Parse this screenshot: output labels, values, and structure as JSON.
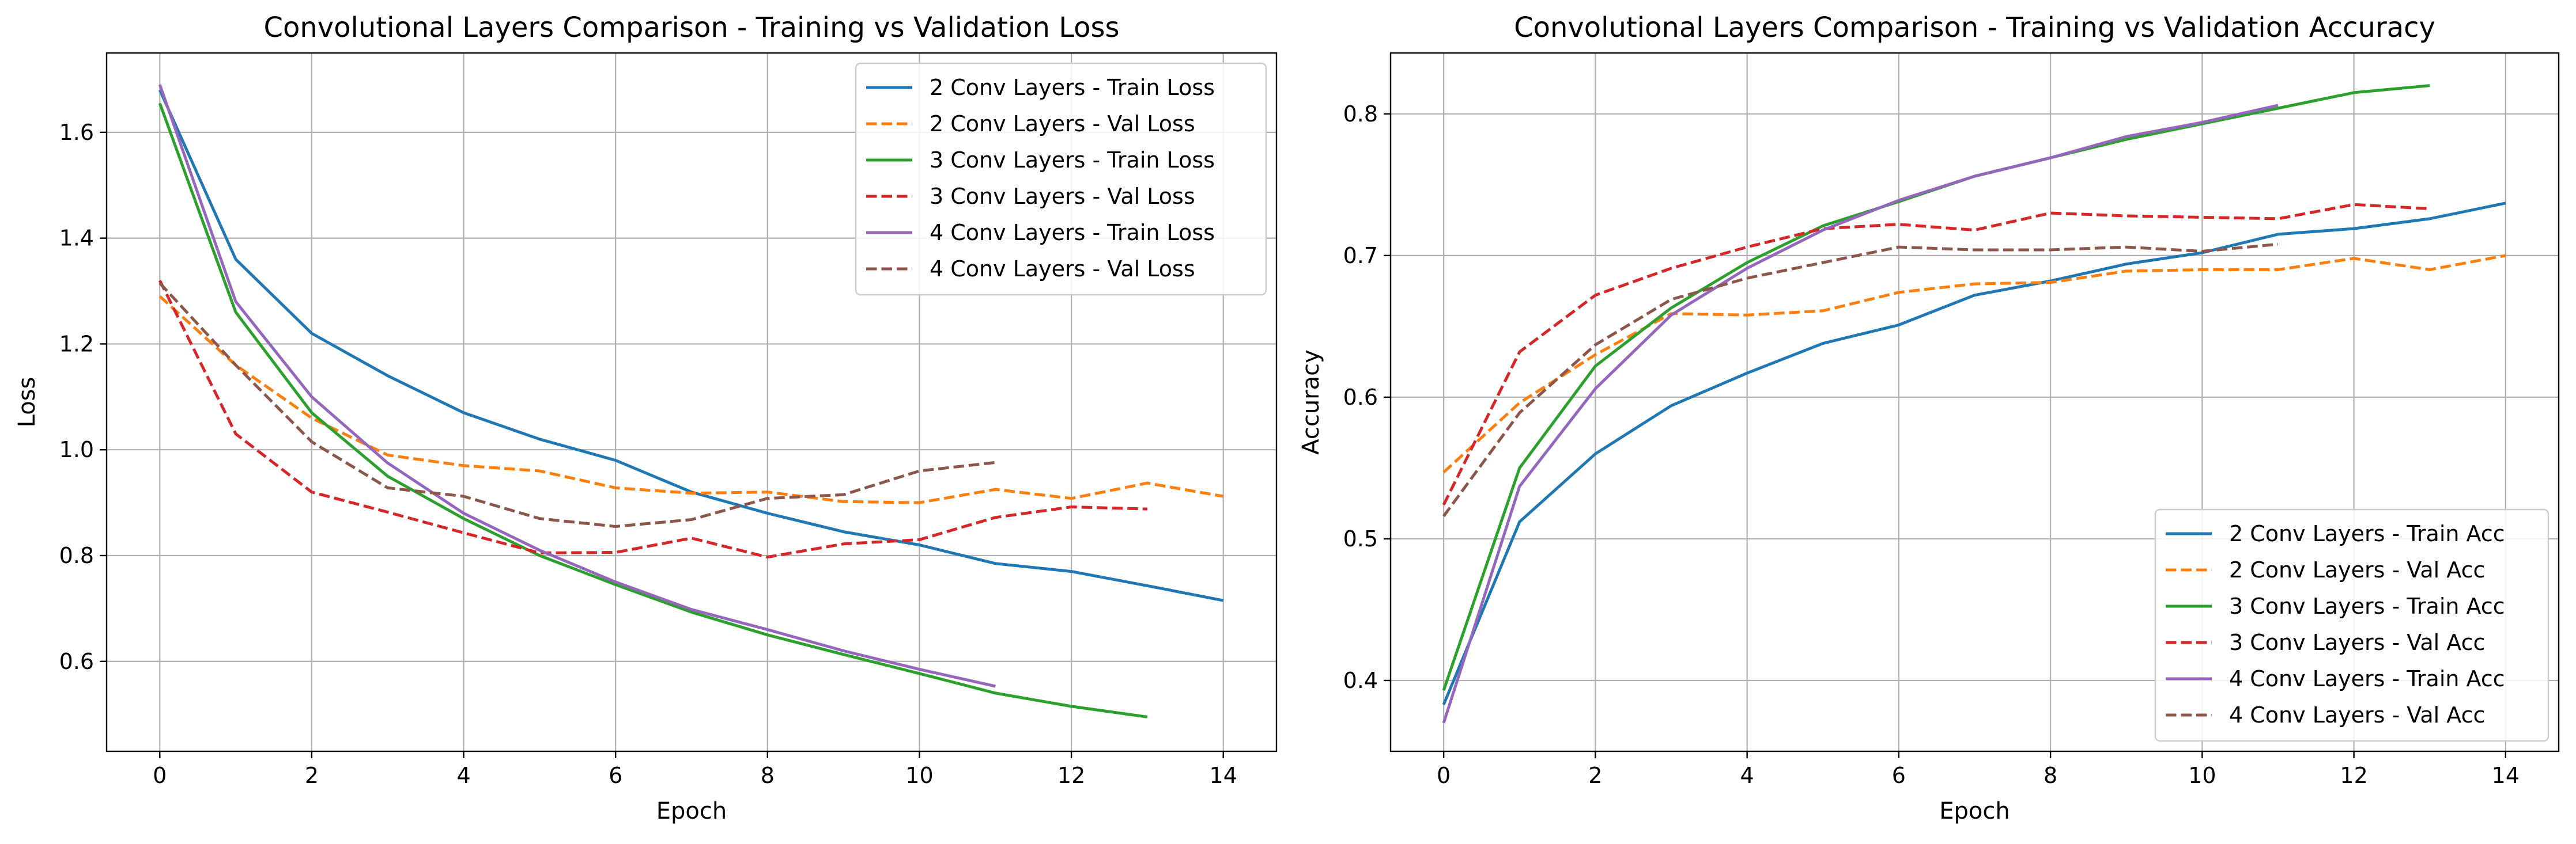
{
  "chart_data": [
    {
      "type": "line",
      "title": "Convolutional Layers Comparison - Training vs Validation Loss",
      "xlabel": "Epoch",
      "ylabel": "Loss",
      "xlim": [
        -0.7,
        14.7
      ],
      "ylim": [
        0.43,
        1.75
      ],
      "xticks": [
        0,
        2,
        4,
        6,
        8,
        10,
        12,
        14
      ],
      "yticks": [
        0.6,
        0.8,
        1.0,
        1.2,
        1.4,
        1.6
      ],
      "ytick_decimals": 1,
      "grid": true,
      "legend_position": "upper right",
      "series": [
        {
          "name": "2 Conv Layers - Train Loss",
          "color": "#1f77b4",
          "dashed": false,
          "x": [
            0,
            1,
            2,
            3,
            4,
            5,
            6,
            7,
            8,
            9,
            10,
            11,
            12,
            13,
            14
          ],
          "y": [
            1.68,
            1.36,
            1.22,
            1.14,
            1.07,
            1.02,
            0.98,
            0.92,
            0.88,
            0.845,
            0.82,
            0.785,
            0.77,
            0.743,
            0.715
          ]
        },
        {
          "name": "2 Conv Layers - Val Loss",
          "color": "#ff7f0e",
          "dashed": true,
          "x": [
            0,
            1,
            2,
            3,
            4,
            5,
            6,
            7,
            8,
            9,
            10,
            11,
            12,
            13,
            14
          ],
          "y": [
            1.29,
            1.16,
            1.06,
            0.99,
            0.97,
            0.96,
            0.928,
            0.918,
            0.92,
            0.902,
            0.9,
            0.925,
            0.908,
            0.937,
            0.912
          ]
        },
        {
          "name": "3 Conv Layers - Train Loss",
          "color": "#2ca02c",
          "dashed": false,
          "x": [
            0,
            1,
            2,
            3,
            4,
            5,
            6,
            7,
            8,
            9,
            10,
            11,
            12,
            13
          ],
          "y": [
            1.655,
            1.26,
            1.07,
            0.95,
            0.87,
            0.8,
            0.745,
            0.693,
            0.65,
            0.613,
            0.577,
            0.54,
            0.515,
            0.495
          ]
        },
        {
          "name": "3 Conv Layers - Val Loss",
          "color": "#d62728",
          "dashed": true,
          "x": [
            0,
            1,
            2,
            3,
            4,
            5,
            6,
            7,
            8,
            9,
            10,
            11,
            12,
            13
          ],
          "y": [
            1.32,
            1.03,
            0.92,
            0.882,
            0.843,
            0.805,
            0.806,
            0.833,
            0.797,
            0.822,
            0.83,
            0.872,
            0.892,
            0.888
          ]
        },
        {
          "name": "4 Conv Layers - Train Loss",
          "color": "#9467bd",
          "dashed": false,
          "x": [
            0,
            1,
            2,
            3,
            4,
            5,
            6,
            7,
            8,
            9,
            10,
            11
          ],
          "y": [
            1.69,
            1.28,
            1.1,
            0.975,
            0.88,
            0.81,
            0.75,
            0.698,
            0.66,
            0.62,
            0.585,
            0.553
          ]
        },
        {
          "name": "4 Conv Layers - Val Loss",
          "color": "#8c564b",
          "dashed": true,
          "x": [
            0,
            1,
            2,
            3,
            4,
            5,
            6,
            7,
            8,
            9,
            10,
            11
          ],
          "y": [
            1.315,
            1.16,
            1.015,
            0.928,
            0.912,
            0.87,
            0.855,
            0.868,
            0.908,
            0.915,
            0.96,
            0.976
          ]
        }
      ]
    },
    {
      "type": "line",
      "title": "Convolutional Layers Comparison - Training vs Validation Accuracy",
      "xlabel": "Epoch",
      "ylabel": "Accuracy",
      "xlim": [
        -0.7,
        14.7
      ],
      "ylim": [
        0.35,
        0.843
      ],
      "xticks": [
        0,
        2,
        4,
        6,
        8,
        10,
        12,
        14
      ],
      "yticks": [
        0.4,
        0.5,
        0.6,
        0.7,
        0.8
      ],
      "ytick_decimals": 1,
      "grid": true,
      "legend_position": "lower right",
      "series": [
        {
          "name": "2 Conv Layers - Train Acc",
          "color": "#1f77b4",
          "dashed": false,
          "x": [
            0,
            1,
            2,
            3,
            4,
            5,
            6,
            7,
            8,
            9,
            10,
            11,
            12,
            13,
            14
          ],
          "y": [
            0.383,
            0.512,
            0.56,
            0.594,
            0.617,
            0.638,
            0.651,
            0.672,
            0.682,
            0.694,
            0.702,
            0.715,
            0.719,
            0.726,
            0.737
          ]
        },
        {
          "name": "2 Conv Layers - Val Acc",
          "color": "#ff7f0e",
          "dashed": true,
          "x": [
            0,
            1,
            2,
            3,
            4,
            5,
            6,
            7,
            8,
            9,
            10,
            11,
            12,
            13,
            14
          ],
          "y": [
            0.547,
            0.596,
            0.63,
            0.659,
            0.658,
            0.661,
            0.674,
            0.68,
            0.681,
            0.689,
            0.69,
            0.69,
            0.698,
            0.69,
            0.7
          ]
        },
        {
          "name": "3 Conv Layers - Train Acc",
          "color": "#2ca02c",
          "dashed": false,
          "x": [
            0,
            1,
            2,
            3,
            4,
            5,
            6,
            7,
            8,
            9,
            10,
            11,
            12,
            13
          ],
          "y": [
            0.393,
            0.55,
            0.622,
            0.663,
            0.695,
            0.721,
            0.738,
            0.756,
            0.769,
            0.782,
            0.793,
            0.804,
            0.815,
            0.82
          ]
        },
        {
          "name": "3 Conv Layers - Val Acc",
          "color": "#d62728",
          "dashed": true,
          "x": [
            0,
            1,
            2,
            3,
            4,
            5,
            6,
            7,
            8,
            9,
            10,
            11,
            12,
            13
          ],
          "y": [
            0.524,
            0.632,
            0.672,
            0.691,
            0.706,
            0.719,
            0.722,
            0.718,
            0.73,
            0.728,
            0.727,
            0.726,
            0.736,
            0.733
          ]
        },
        {
          "name": "4 Conv Layers - Train Acc",
          "color": "#9467bd",
          "dashed": false,
          "x": [
            0,
            1,
            2,
            3,
            4,
            5,
            6,
            7,
            8,
            9,
            10,
            11
          ],
          "y": [
            0.37,
            0.537,
            0.606,
            0.658,
            0.691,
            0.718,
            0.739,
            0.756,
            0.769,
            0.784,
            0.794,
            0.806
          ]
        },
        {
          "name": "4 Conv Layers - Val Acc",
          "color": "#8c564b",
          "dashed": true,
          "x": [
            0,
            1,
            2,
            3,
            4,
            5,
            6,
            7,
            8,
            9,
            10,
            11
          ],
          "y": [
            0.516,
            0.589,
            0.637,
            0.669,
            0.684,
            0.695,
            0.706,
            0.704,
            0.704,
            0.706,
            0.703,
            0.708
          ]
        }
      ]
    }
  ]
}
